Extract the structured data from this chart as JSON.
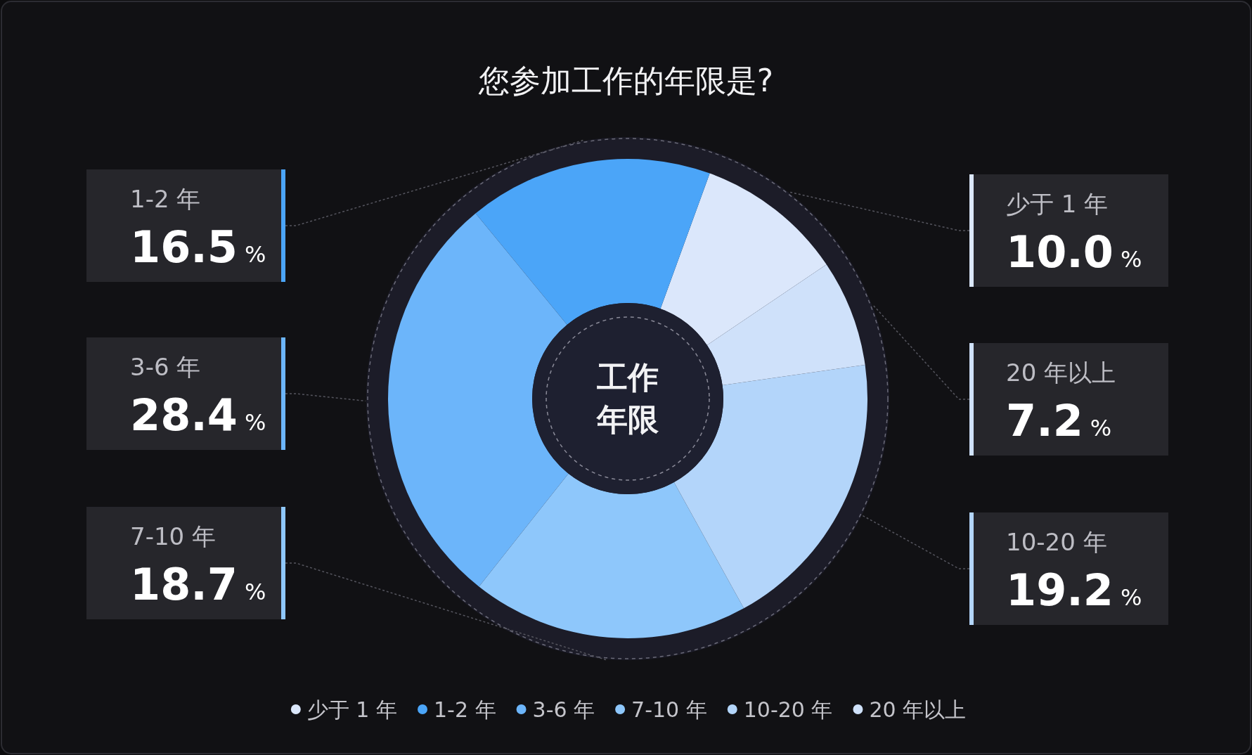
{
  "chart_data": {
    "type": "donut",
    "title": "您参加工作的年限是?",
    "categories": [
      "少于 1 年",
      "1-2 年",
      "3-6 年",
      "7-10 年",
      "10-20 年",
      "20 年以上"
    ],
    "values": [
      10.0,
      16.5,
      28.4,
      18.7,
      19.2,
      7.2
    ],
    "colors": [
      "#dbe7fb",
      "#4ba5f8",
      "#6cb5fa",
      "#8ec7fb",
      "#b3d5fa",
      "#cfe1fa"
    ],
    "value_labels": [
      "10.0 %",
      "16.5 %",
      "28.4 %",
      "18.7 %",
      "19.2 %",
      "7.2 %"
    ],
    "annotations": [
      "工作年限"
    ],
    "legend": "bottom"
  }
}
